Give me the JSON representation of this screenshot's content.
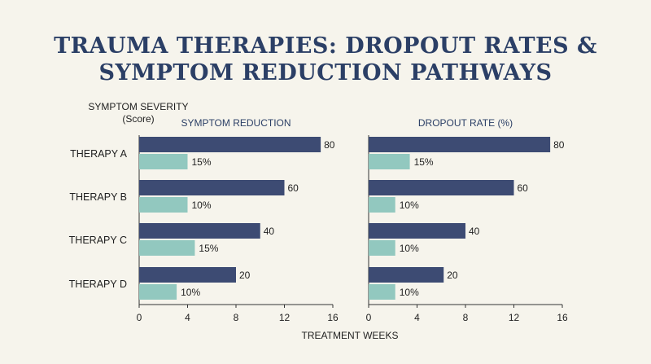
{
  "title_line1": "TRAUMA THERAPIES: DROPOUT RATES &",
  "title_line2": "SYMPTOM REDUCTION PATHWAYS",
  "colors": {
    "dark_bar": "#3d4b73",
    "light_bar": "#92c8bf",
    "title": "#2b3f66",
    "background": "#f6f4ec"
  },
  "chart_data": {
    "type": "bar",
    "orientation": "horizontal",
    "y_axis_title_line1": "SYMPTOM SEVERITY",
    "y_axis_title_line2": "(Score)",
    "xlabel": "TREATMENT WEEKS",
    "categories": [
      "THERAPY A",
      "THERAPY B",
      "THERAPY C",
      "THERAPY D"
    ],
    "xlim": [
      0,
      16
    ],
    "xticks": [
      "0",
      "4",
      "8",
      "12",
      "16"
    ],
    "panels": [
      {
        "title": "SYMPTOM REDUCTION",
        "dark_series": {
          "bar_values": [
            15,
            12,
            10,
            8
          ],
          "labels": [
            "80",
            "60",
            "40",
            "20"
          ]
        },
        "light_series": {
          "bar_values": [
            4,
            4,
            4.6,
            3.1
          ],
          "labels": [
            "15%",
            "10%",
            "15%",
            "10%"
          ]
        }
      },
      {
        "title": "DROPOUT RATE (%)",
        "dark_series": {
          "bar_values": [
            15,
            12,
            8,
            6.2
          ],
          "labels": [
            "80",
            "60",
            "40",
            "20"
          ]
        },
        "light_series": {
          "bar_values": [
            3.4,
            2.2,
            2.2,
            2.2
          ],
          "labels": [
            "15%",
            "10%",
            "10%",
            "10%"
          ]
        }
      }
    ]
  }
}
